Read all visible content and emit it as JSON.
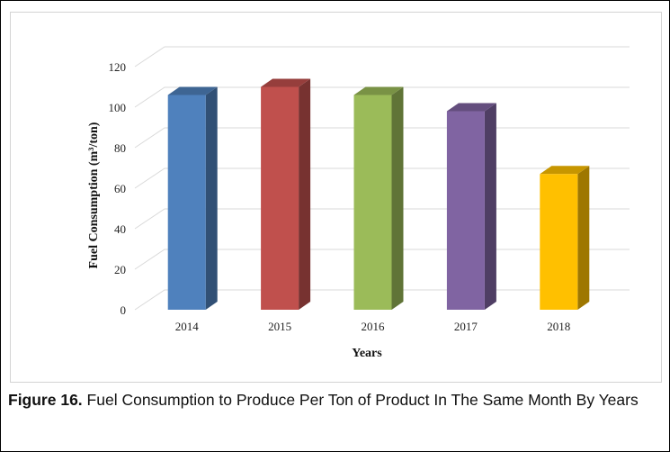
{
  "caption": {
    "label": "Figure 16.",
    "text": "Fuel Consumption to Produce Per Ton of Product In The Same Month By Years"
  },
  "chart_data": {
    "type": "bar",
    "style": "3d-column",
    "categories": [
      "2014",
      "2015",
      "2016",
      "2017",
      "2018"
    ],
    "values": [
      106,
      110,
      106,
      98,
      67
    ],
    "colors": [
      "#4f81bd",
      "#c0504d",
      "#9bbb59",
      "#8064a2",
      "#ffc000"
    ],
    "xlabel": "Years",
    "ylabel": "Fuel Consumption (m³/ton)",
    "ylim": [
      0,
      120
    ],
    "yticks": [
      "0",
      "20",
      "40",
      "60",
      "80",
      "100",
      "120"
    ],
    "grid": true,
    "legend": "none"
  }
}
